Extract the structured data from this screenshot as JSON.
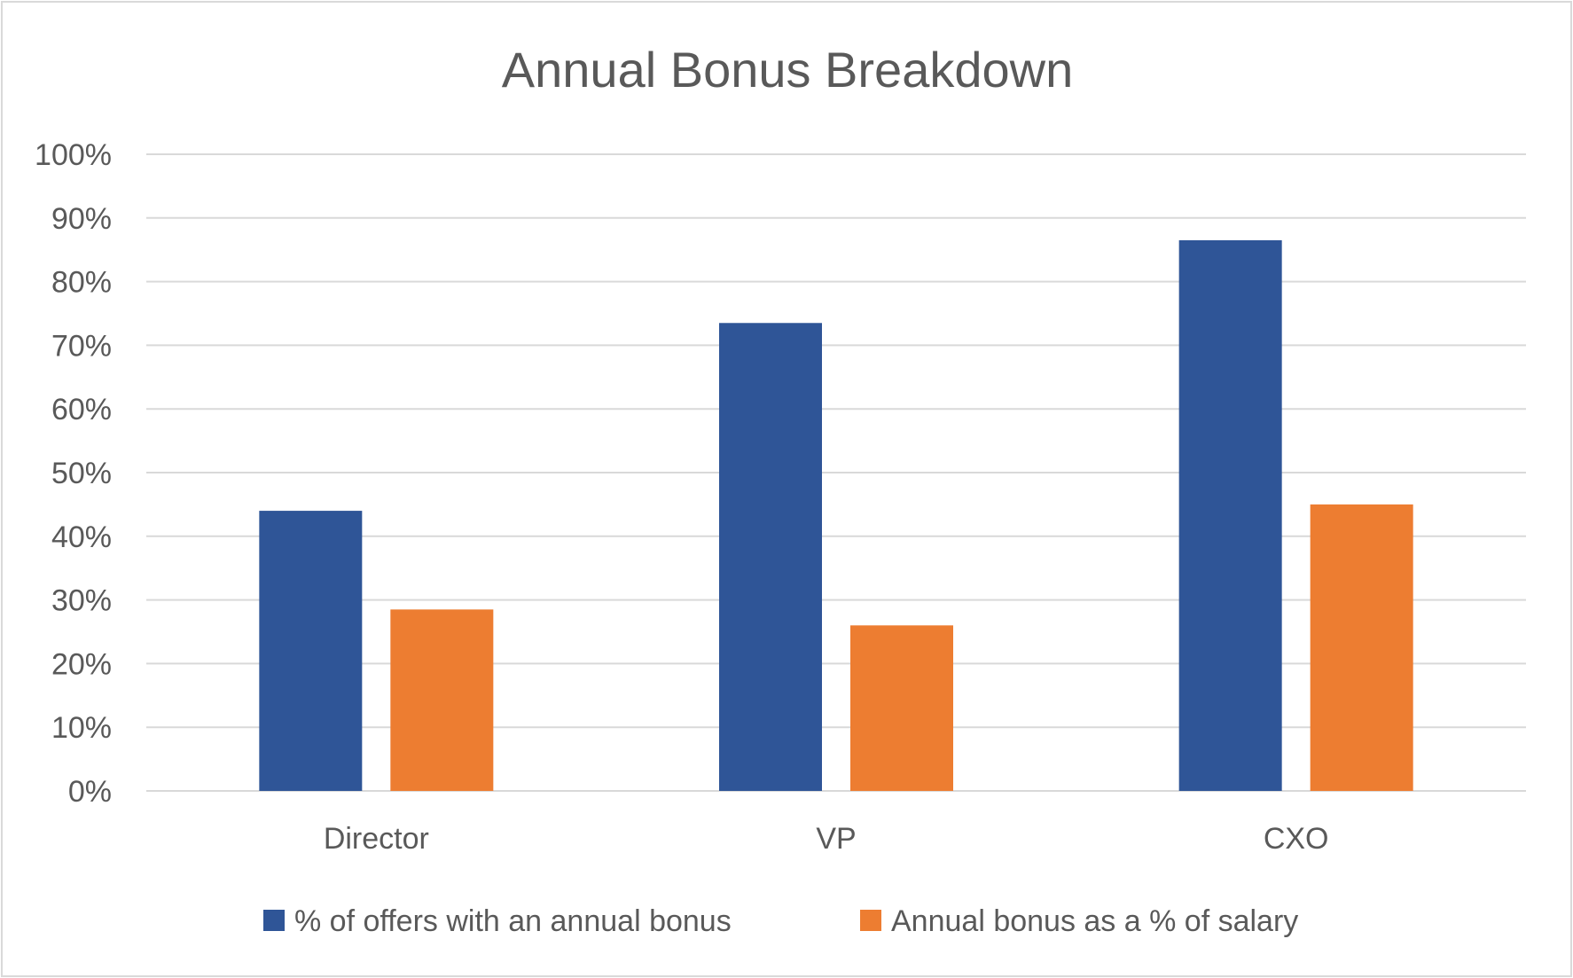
{
  "chart_data": {
    "type": "bar",
    "title": "Annual Bonus Breakdown",
    "categories": [
      "Director",
      "VP",
      "CXO"
    ],
    "series": [
      {
        "name": "% of offers with an annual bonus",
        "color": "#2f5597",
        "values": [
          0.44,
          0.735,
          0.865
        ]
      },
      {
        "name": "Annual bonus as a % of salary",
        "color": "#ed7d31",
        "values": [
          0.285,
          0.26,
          0.45
        ]
      }
    ],
    "xlabel": "",
    "ylabel": "",
    "ylim": [
      0,
      1
    ],
    "y_ticks": [
      "0%",
      "10%",
      "20%",
      "30%",
      "40%",
      "50%",
      "60%",
      "70%",
      "80%",
      "90%",
      "100%"
    ],
    "grid": true,
    "legend_position": "bottom"
  }
}
